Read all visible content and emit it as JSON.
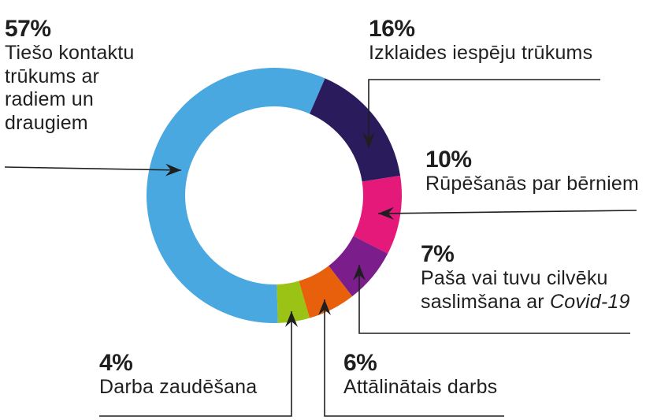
{
  "chart_data": {
    "type": "pie",
    "title": "",
    "slices": [
      {
        "label": "Tiešo kontaktu trūkums ar radiem un draugiem",
        "value": 57,
        "value_label": "57%",
        "color": "#4aa8e0"
      },
      {
        "label": "Izklaides iespēju trūkums",
        "value": 16,
        "value_label": "16%",
        "color": "#2a1b5c"
      },
      {
        "label": "Rūpēšanās par bērniem",
        "value": 10,
        "value_label": "10%",
        "color": "#e5197a"
      },
      {
        "label": "Paša vai tuvu cilvēku saslimšana ar Covid-19",
        "label_main": "Paša vai tuvu cilvēku saslimšana ar",
        "label_italic": "Covid-19",
        "value": 7,
        "value_label": "7%",
        "color": "#7b1e8c"
      },
      {
        "label": "Attālinātais darbs",
        "value": 6,
        "value_label": "6%",
        "color": "#e8600c"
      },
      {
        "label": "Darba zaudēšana",
        "value": 4,
        "value_label": "4%",
        "color": "#9ac316"
      }
    ]
  }
}
